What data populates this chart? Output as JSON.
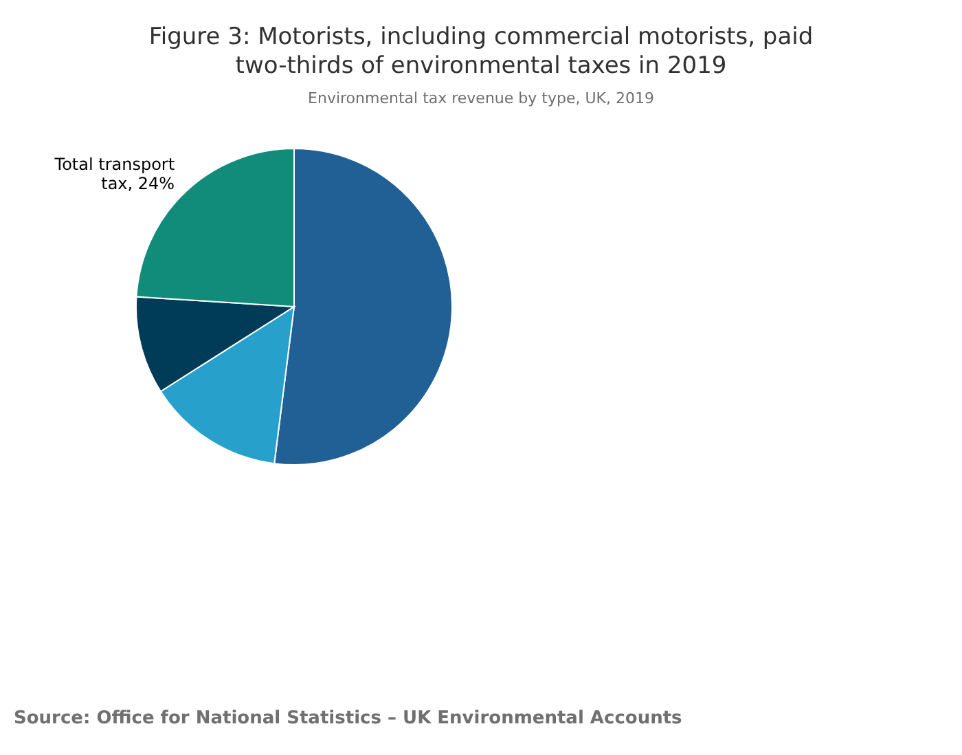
{
  "chart_data": {
    "type": "pie",
    "title": "Figure 3: Motorists, including commercial motorists, paid two-thirds of environmental taxes in 2019",
    "subtitle": "Environmental tax revenue by type, UK, 2019",
    "categories": [
      null,
      null,
      null,
      "Total transport tax"
    ],
    "values": [
      52,
      14,
      10,
      24
    ],
    "value_labels": [
      null,
      null,
      null,
      "24%"
    ],
    "colors": [
      "#206095",
      "#27a0cc",
      "#003c57",
      "#118c7b"
    ],
    "annotations": [
      "Source: Office for National Statistics – UK Environmental Accounts"
    ]
  }
}
